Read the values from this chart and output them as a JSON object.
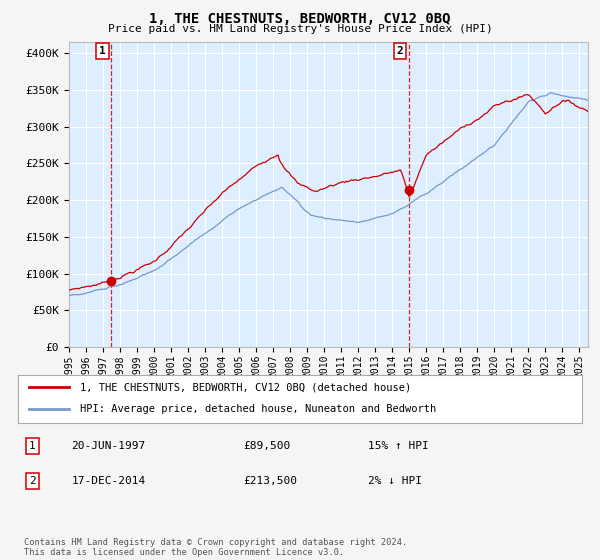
{
  "title": "1, THE CHESTNUTS, BEDWORTH, CV12 0BQ",
  "subtitle": "Price paid vs. HM Land Registry's House Price Index (HPI)",
  "ylabel_ticks": [
    "£0",
    "£50K",
    "£100K",
    "£150K",
    "£200K",
    "£250K",
    "£300K",
    "£350K",
    "£400K"
  ],
  "ylabel_values": [
    0,
    50000,
    100000,
    150000,
    200000,
    250000,
    300000,
    350000,
    400000
  ],
  "ylim": [
    0,
    415000
  ],
  "xlim_start": 1995.0,
  "xlim_end": 2025.5,
  "sale1_date": 1997.47,
  "sale1_price": 89500,
  "sale1_label": "1",
  "sale1_date_str": "20-JUN-1997",
  "sale1_price_str": "£89,500",
  "sale1_pct_str": "15% ↑ HPI",
  "sale2_date": 2014.96,
  "sale2_price": 213500,
  "sale2_label": "2",
  "sale2_date_str": "17-DEC-2014",
  "sale2_price_str": "£213,500",
  "sale2_pct_str": "2% ↓ HPI",
  "line_color_red": "#cc0000",
  "line_color_blue": "#7799cc",
  "plot_bg_color": "#ddeeff",
  "grid_color": "#ffffff",
  "marker_color": "#cc0000",
  "dashed_line_color": "#cc0000",
  "legend_label_red": "1, THE CHESTNUTS, BEDWORTH, CV12 0BQ (detached house)",
  "legend_label_blue": "HPI: Average price, detached house, Nuneaton and Bedworth",
  "footnote": "Contains HM Land Registry data © Crown copyright and database right 2024.\nThis data is licensed under the Open Government Licence v3.0.",
  "xtick_years": [
    1995,
    1996,
    1997,
    1998,
    1999,
    2000,
    2001,
    2002,
    2003,
    2004,
    2005,
    2006,
    2007,
    2008,
    2009,
    2010,
    2011,
    2012,
    2013,
    2014,
    2015,
    2016,
    2017,
    2018,
    2019,
    2020,
    2021,
    2022,
    2023,
    2024,
    2025
  ]
}
